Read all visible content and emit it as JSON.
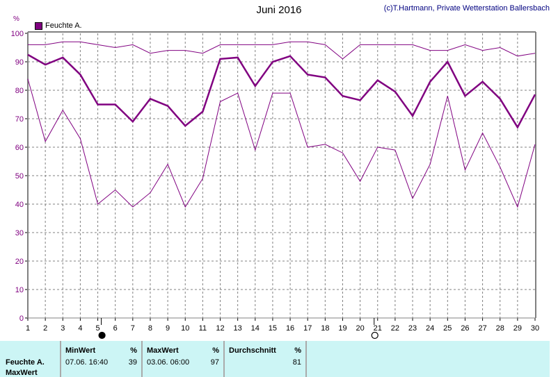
{
  "header": {
    "title": "Juni 2016",
    "copyright": "(c)T.Hartmann, Private Wetterstation Ballersbach",
    "unit": "%"
  },
  "chart_data": {
    "type": "line",
    "title": "Juni 2016",
    "ylabel": "%",
    "ylim": [
      0,
      100
    ],
    "xlim": [
      1,
      30
    ],
    "grid": true,
    "legend": "top-left",
    "legend_entries": [
      "Feuchte A."
    ],
    "x": [
      1,
      2,
      3,
      4,
      5,
      6,
      7,
      8,
      9,
      10,
      11,
      12,
      13,
      14,
      15,
      16,
      17,
      18,
      19,
      20,
      21,
      22,
      23,
      24,
      25,
      26,
      27,
      28,
      29,
      30
    ],
    "yticks": [
      0,
      10,
      20,
      30,
      40,
      50,
      60,
      70,
      80,
      90,
      100
    ],
    "series": [
      {
        "name": "Feuchte A. Max",
        "values": [
          96,
          96,
          97,
          97,
          96,
          95,
          96,
          93,
          94,
          94,
          93,
          96,
          96,
          96,
          96,
          97,
          97,
          96,
          91,
          96,
          96,
          96,
          96,
          94,
          94,
          96,
          94,
          95,
          92,
          93
        ]
      },
      {
        "name": "Feuchte A.",
        "values": [
          92.5,
          89,
          91.5,
          85.5,
          75,
          75,
          69,
          77,
          74.5,
          67.5,
          72.5,
          91,
          91.5,
          81.5,
          90,
          92,
          85.5,
          84.5,
          78,
          76.5,
          83.5,
          79.5,
          71,
          83,
          90,
          78,
          83,
          77,
          67,
          78.5
        ]
      },
      {
        "name": "Feuchte A. Min",
        "values": [
          84,
          62,
          73,
          63,
          40,
          45,
          39,
          44,
          54,
          39,
          49,
          76,
          79,
          59,
          79,
          79,
          60,
          61,
          58,
          48,
          60,
          59,
          42,
          54,
          78,
          52,
          65,
          53,
          39,
          61
        ]
      }
    ],
    "moon_phases": [
      {
        "type": "new-moon",
        "day": 5.2
      },
      {
        "type": "full-moon",
        "day": 20.8
      }
    ],
    "color": "#800080"
  },
  "table": {
    "row_label": "Feuchte A.",
    "row_label2": "MaxWert",
    "min": {
      "header": "MinWert",
      "unit": "%",
      "date": "07.06.  16:40",
      "value": "39"
    },
    "max": {
      "header": "MaxWert",
      "unit": "%",
      "date": "03.06.  06:00",
      "value": "97"
    },
    "avg": {
      "header": "Durchschnitt",
      "unit": "%",
      "value": "81"
    }
  }
}
